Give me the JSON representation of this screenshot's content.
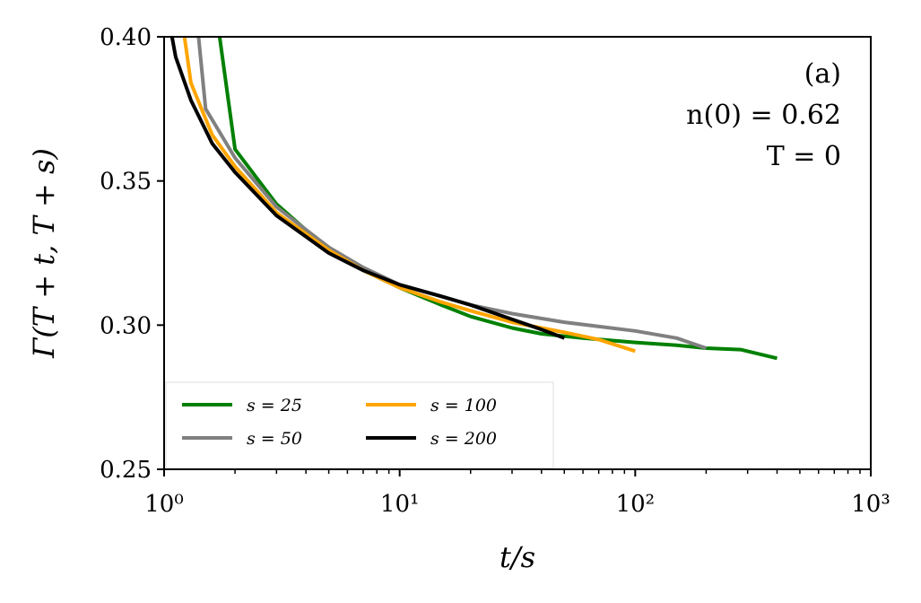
{
  "chart_data": {
    "type": "line",
    "annotations": [
      "(a)",
      "n(0) = 0.62",
      "T = 0"
    ],
    "xlabel": "t/s",
    "ylabel": "Γ(T + t, T + s)",
    "x_scale": "log",
    "xlim": [
      1,
      1000
    ],
    "ylim": [
      0.25,
      0.4
    ],
    "x_ticks": [
      {
        "value": 1,
        "label": "10⁰"
      },
      {
        "value": 10,
        "label": "10¹"
      },
      {
        "value": 100,
        "label": "10²"
      },
      {
        "value": 1000,
        "label": "10³"
      }
    ],
    "y_ticks": [
      {
        "value": 0.25,
        "label": "0.25"
      },
      {
        "value": 0.3,
        "label": "0.30"
      },
      {
        "value": 0.35,
        "label": "0.35"
      },
      {
        "value": 0.4,
        "label": "0.40"
      }
    ],
    "grid": false,
    "legend": "lower-left, 2 columns",
    "series": [
      {
        "name": "s = 25",
        "color": "#008000",
        "points": [
          [
            1.72,
            0.4
          ],
          [
            2.0,
            0.361
          ],
          [
            3.0,
            0.342
          ],
          [
            4.0,
            0.333
          ],
          [
            5.0,
            0.327
          ],
          [
            7.0,
            0.319
          ],
          [
            10.0,
            0.313
          ],
          [
            15.0,
            0.307
          ],
          [
            20.0,
            0.303
          ],
          [
            30.0,
            0.299
          ],
          [
            40.0,
            0.297
          ],
          [
            60.0,
            0.2955
          ],
          [
            100.0,
            0.294
          ],
          [
            150.0,
            0.293
          ],
          [
            200.0,
            0.292
          ],
          [
            280.0,
            0.2915
          ],
          [
            400.0,
            0.2885
          ]
        ]
      },
      {
        "name": "s = 50",
        "color": "#808080",
        "points": [
          [
            1.4,
            0.4
          ],
          [
            1.5,
            0.375
          ],
          [
            2.0,
            0.358
          ],
          [
            3.0,
            0.341
          ],
          [
            5.0,
            0.327
          ],
          [
            7.0,
            0.32
          ],
          [
            10.0,
            0.314
          ],
          [
            15.0,
            0.31
          ],
          [
            20.0,
            0.307
          ],
          [
            30.0,
            0.304
          ],
          [
            50.0,
            0.301
          ],
          [
            100.0,
            0.298
          ],
          [
            150.0,
            0.2955
          ],
          [
            200.0,
            0.292
          ]
        ]
      },
      {
        "name": "s = 100",
        "color": "#ffa500",
        "points": [
          [
            1.22,
            0.4
          ],
          [
            1.3,
            0.384
          ],
          [
            1.6,
            0.366
          ],
          [
            2.0,
            0.355
          ],
          [
            3.0,
            0.339
          ],
          [
            5.0,
            0.326
          ],
          [
            7.0,
            0.319
          ],
          [
            10.0,
            0.313
          ],
          [
            15.0,
            0.308
          ],
          [
            20.0,
            0.305
          ],
          [
            30.0,
            0.301
          ],
          [
            50.0,
            0.2975
          ],
          [
            70.0,
            0.295
          ],
          [
            100.0,
            0.291
          ]
        ]
      },
      {
        "name": "s = 200",
        "color": "#000000",
        "points": [
          [
            1.08,
            0.4
          ],
          [
            1.12,
            0.393
          ],
          [
            1.3,
            0.378
          ],
          [
            1.6,
            0.363
          ],
          [
            2.0,
            0.353
          ],
          [
            3.0,
            0.338
          ],
          [
            5.0,
            0.325
          ],
          [
            7.0,
            0.319
          ],
          [
            10.0,
            0.314
          ],
          [
            15.0,
            0.31
          ],
          [
            20.0,
            0.307
          ],
          [
            30.0,
            0.302
          ],
          [
            40.0,
            0.2985
          ],
          [
            50.0,
            0.2955
          ]
        ]
      }
    ]
  }
}
